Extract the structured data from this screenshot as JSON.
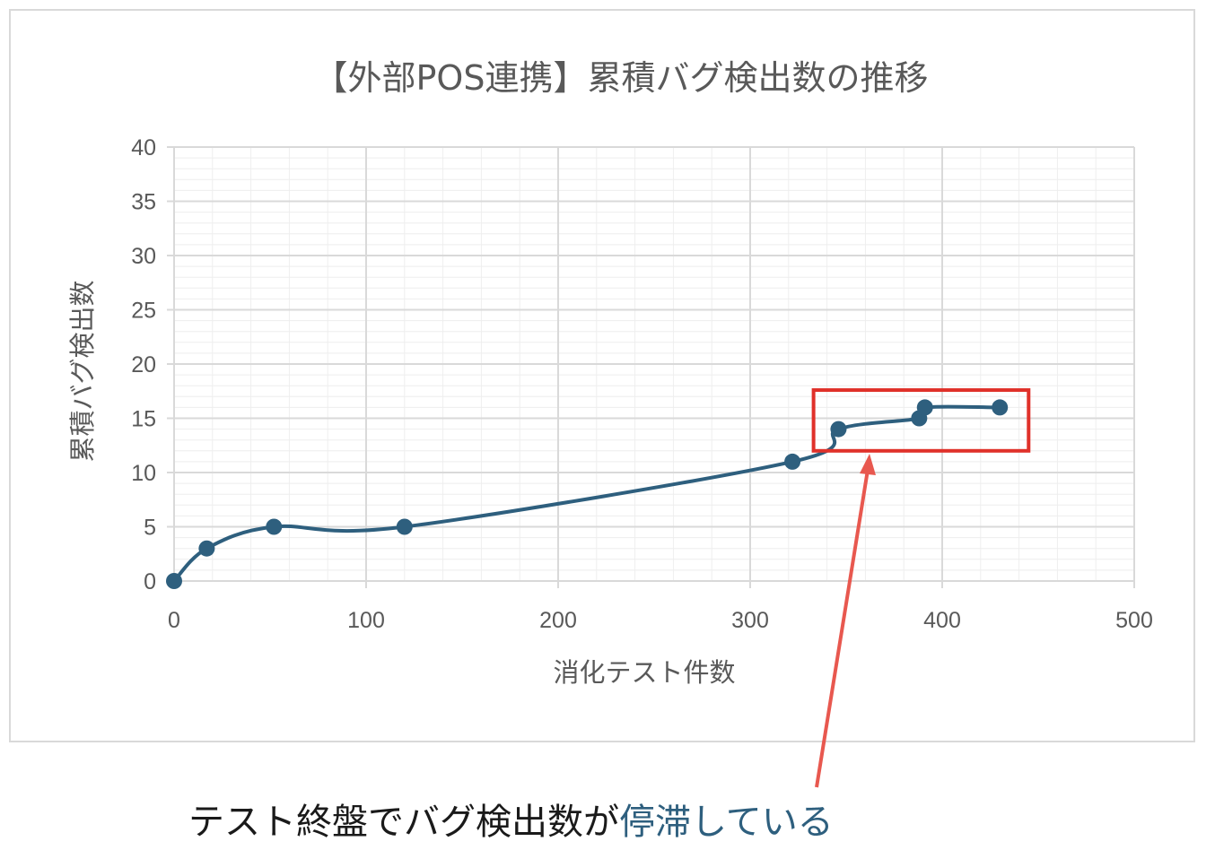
{
  "chart_data": {
    "type": "line",
    "title": "【外部POS連携】累積バグ検出数の推移",
    "xlabel": "消化テスト件数",
    "ylabel": "累積バグ検出数",
    "xlim": [
      0,
      500
    ],
    "ylim": [
      0,
      40
    ],
    "xticks": [
      0,
      100,
      200,
      300,
      400,
      500
    ],
    "yticks": [
      0,
      5,
      10,
      15,
      20,
      25,
      30,
      35,
      40
    ],
    "grid": true,
    "legend": "none",
    "series": [
      {
        "points": [
          {
            "x": 0,
            "y": 0
          },
          {
            "x": 17,
            "y": 3
          },
          {
            "x": 52,
            "y": 5
          },
          {
            "x": 120,
            "y": 5
          },
          {
            "x": 322,
            "y": 11
          },
          {
            "x": 346,
            "y": 14
          },
          {
            "x": 388,
            "y": 15
          },
          {
            "x": 391,
            "y": 16
          },
          {
            "x": 430,
            "y": 16
          }
        ]
      }
    ],
    "highlight_box": {
      "x_range": [
        333,
        445
      ],
      "y_range": [
        12,
        17.6
      ]
    }
  },
  "annotation": {
    "prefix": "テスト終盤でバグ検出数が",
    "highlight": "停滞している"
  },
  "colors": {
    "series": "#2e5f7e",
    "highlight_box": "#e0312a",
    "arrow": "#e8584f",
    "grid_major": "#d9d9d9",
    "grid_minor": "#eeeeee",
    "annotation_highlight": "#2e5f7e"
  }
}
